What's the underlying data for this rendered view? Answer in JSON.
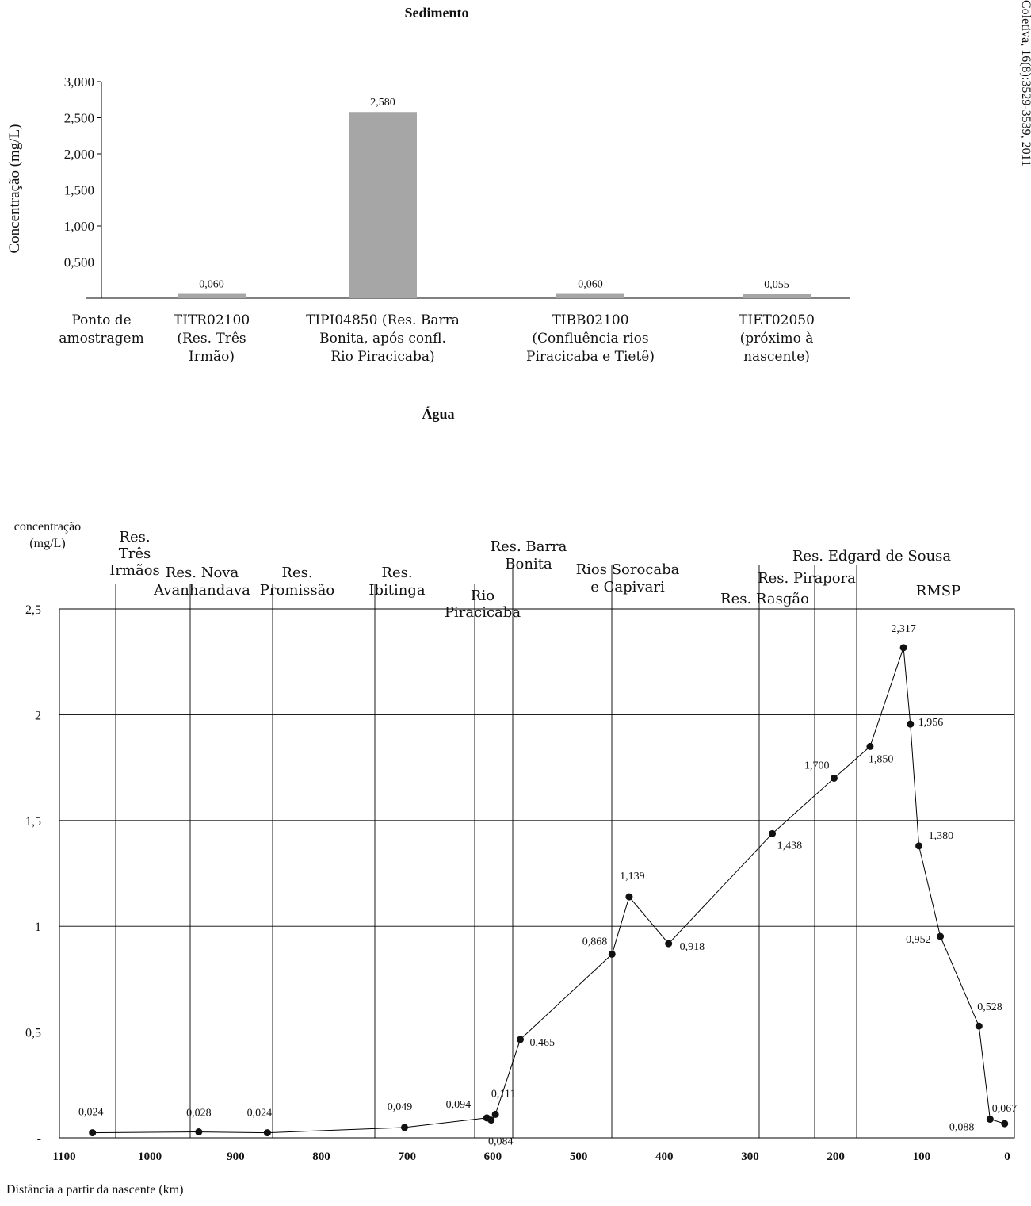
{
  "side_note": "Coletiva, 16(8):3529-3539, 2011",
  "colors": {
    "bar": "#a6a6a6",
    "line": "#000000",
    "text": "#111111"
  },
  "chart_data": [
    {
      "type": "bar",
      "title": "Sedimento",
      "ylabel": "Concentração (mg/L)",
      "xlabel": "",
      "first_category_label": [
        "Ponto de",
        "amostragem"
      ],
      "categories": [
        [
          "TITR02100",
          "(Res. Três",
          "Irmão)"
        ],
        [
          "TIPI04850 (Res. Barra",
          "Bonita, após confl.",
          "Rio Piracicaba)"
        ],
        [
          "TIBB02100",
          "(Confluência rios",
          "Piracicaba e Tietê)"
        ],
        [
          "TIET02050",
          "(próximo à",
          "nascente)"
        ]
      ],
      "values": [
        0.06,
        2.58,
        0.06,
        0.055
      ],
      "value_labels": [
        "0,060",
        "2,580",
        "0,060",
        "0,055"
      ],
      "yticks": [
        "",
        "0,500",
        "1,000",
        "1,500",
        "2,000",
        "2,500",
        "3,000"
      ],
      "ylim": [
        0,
        3
      ]
    },
    {
      "type": "line",
      "title": "Água",
      "ylabel": [
        "concentração",
        "(mg/L)"
      ],
      "xlabel": "Distância a partir da nascente (km)",
      "xlim": [
        1100,
        0
      ],
      "ylim": [
        0,
        2.5
      ],
      "xticks": [
        "1100",
        "1000",
        "900",
        "800",
        "700",
        "600",
        "500",
        "400",
        "300",
        "200",
        "100",
        "0"
      ],
      "yticks": [
        "-",
        "0,5",
        "1",
        "1,5",
        "2",
        "2,5"
      ],
      "points": [
        {
          "x": 1067,
          "y": 0.024,
          "label": "0,024"
        },
        {
          "x": 943,
          "y": 0.028,
          "label": "0,028"
        },
        {
          "x": 863,
          "y": 0.024,
          "label": "0,024"
        },
        {
          "x": 703,
          "y": 0.049,
          "label": "0,049"
        },
        {
          "x": 607,
          "y": 0.094,
          "label": "0,094"
        },
        {
          "x": 602,
          "y": 0.084,
          "label": "0,084"
        },
        {
          "x": 597,
          "y": 0.111,
          "label": "0,111"
        },
        {
          "x": 568,
          "y": 0.465,
          "label": "0,465"
        },
        {
          "x": 461,
          "y": 0.868,
          "label": "0,868"
        },
        {
          "x": 441,
          "y": 1.139,
          "label": "1,139"
        },
        {
          "x": 395,
          "y": 0.918,
          "label": "0,918"
        },
        {
          "x": 274,
          "y": 1.438,
          "label": "1,438"
        },
        {
          "x": 202,
          "y": 1.7,
          "label": "1,700"
        },
        {
          "x": 160,
          "y": 1.85,
          "label": "1,850"
        },
        {
          "x": 121,
          "y": 2.317,
          "label": "2,317"
        },
        {
          "x": 113,
          "y": 1.956,
          "label": "1,956"
        },
        {
          "x": 103,
          "y": 1.38,
          "label": "1,380"
        },
        {
          "x": 78,
          "y": 0.952,
          "label": "0,952"
        },
        {
          "x": 33,
          "y": 0.528,
          "label": "0,528"
        },
        {
          "x": 20,
          "y": 0.088,
          "label": "0,088"
        },
        {
          "x": 3,
          "y": 0.067,
          "label": "0,067"
        }
      ],
      "region_boundaries_km": [
        1035,
        949,
        855,
        737,
        622,
        578,
        463,
        292,
        228,
        180
      ],
      "region_labels": [
        [
          "Res.",
          "Três",
          "Irmãos"
        ],
        [
          "Res. Nova",
          "Avanhandava"
        ],
        [
          "Res.",
          "Promissão"
        ],
        [
          "Res.",
          "Ibitinga"
        ],
        [
          "Rio",
          "Piracicaba"
        ],
        [
          "Res. Barra",
          "Bonita"
        ],
        [
          "Rios Sorocaba",
          "e Capivari"
        ],
        [
          "Res. Rasgão"
        ],
        [
          "Res. Pirapora"
        ],
        [
          "Res. Edgard de Sousa"
        ],
        [
          "RMSP"
        ]
      ]
    }
  ]
}
